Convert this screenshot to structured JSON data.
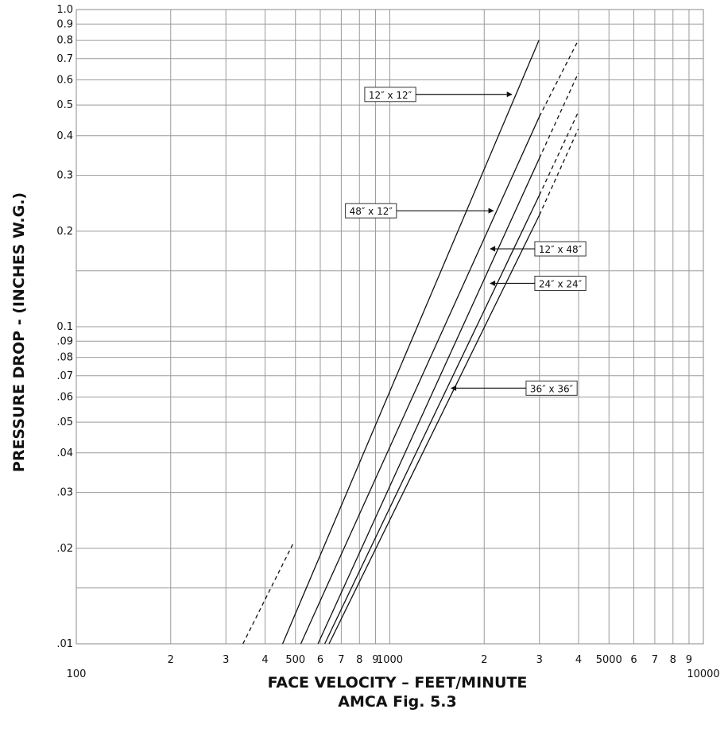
{
  "chart_data": {
    "type": "line",
    "title": "",
    "xlabel": "FACE VELOCITY – FEET/MINUTE",
    "ylabel": "PRESSURE DROP - (INCHES W.G.)",
    "caption": "AMCA Fig. 5.3",
    "x_scale": "log",
    "y_scale": "log",
    "xlim": [
      100,
      10000
    ],
    "ylim": [
      0.01,
      1.0
    ],
    "grid": true,
    "x_ticks": [
      {
        "value": 100,
        "label": "100"
      },
      {
        "value": 200,
        "label": "2"
      },
      {
        "value": 300,
        "label": "3"
      },
      {
        "value": 400,
        "label": "4"
      },
      {
        "value": 500,
        "label": "500"
      },
      {
        "value": 600,
        "label": "6"
      },
      {
        "value": 700,
        "label": "7"
      },
      {
        "value": 800,
        "label": "8"
      },
      {
        "value": 900,
        "label": "9"
      },
      {
        "value": 1000,
        "label": "1000"
      },
      {
        "value": 2000,
        "label": "2"
      },
      {
        "value": 3000,
        "label": "3"
      },
      {
        "value": 4000,
        "label": "4"
      },
      {
        "value": 5000,
        "label": "5000"
      },
      {
        "value": 6000,
        "label": "6"
      },
      {
        "value": 7000,
        "label": "7"
      },
      {
        "value": 8000,
        "label": "8"
      },
      {
        "value": 9000,
        "label": "9"
      },
      {
        "value": 10000,
        "label": "10000"
      }
    ],
    "y_ticks": [
      {
        "value": 1.0,
        "label": "1.0"
      },
      {
        "value": 0.9,
        "label": "0.9"
      },
      {
        "value": 0.8,
        "label": "0.8"
      },
      {
        "value": 0.7,
        "label": "0.7"
      },
      {
        "value": 0.6,
        "label": "0.6"
      },
      {
        "value": 0.5,
        "label": "0.5"
      },
      {
        "value": 0.4,
        "label": "0.4"
      },
      {
        "value": 0.3,
        "label": "0.3"
      },
      {
        "value": 0.2,
        "label": "0.2"
      },
      {
        "value": 0.1,
        "label": "0.1"
      },
      {
        "value": 0.09,
        "label": ".09"
      },
      {
        "value": 0.08,
        "label": ".08"
      },
      {
        "value": 0.07,
        "label": ".07"
      },
      {
        "value": 0.06,
        "label": ".06"
      },
      {
        "value": 0.05,
        "label": ".05"
      },
      {
        "value": 0.04,
        "label": ".04"
      },
      {
        "value": 0.03,
        "label": ".03"
      },
      {
        "value": 0.02,
        "label": ".02"
      },
      {
        "value": 0.01,
        "label": ".01"
      }
    ],
    "y_gridlines": [
      1.0,
      0.9,
      0.8,
      0.7,
      0.6,
      0.5,
      0.4,
      0.3,
      0.2,
      0.15,
      0.1,
      0.09,
      0.08,
      0.07,
      0.06,
      0.05,
      0.04,
      0.03,
      0.02,
      0.015,
      0.01
    ],
    "series": [
      {
        "name": "12″ x 12″",
        "color": "#111111",
        "solid": [
          [
            455,
            0.01
          ],
          [
            2990,
            0.8
          ]
        ],
        "dashed": [
          [
            340,
            0.01
          ],
          [
            495,
            0.021
          ]
        ],
        "label_at": [
          2450,
          0.54
        ]
      },
      {
        "name": "48″ x 12″",
        "color": "#111111",
        "solid": [
          [
            520,
            0.01
          ],
          [
            3000,
            0.46
          ]
        ],
        "dashed": [
          [
            3000,
            0.46
          ],
          [
            3990,
            0.8
          ]
        ],
        "label_at": [
          2140,
          0.232
        ]
      },
      {
        "name": "12″ x 48″",
        "color": "#111111",
        "solid": [
          [
            590,
            0.01
          ],
          [
            3000,
            0.34
          ]
        ],
        "dashed": [
          [
            3000,
            0.34
          ],
          [
            3990,
            0.63
          ]
        ],
        "label_at": [
          2090,
          0.176
        ]
      },
      {
        "name": "24″ x 24″",
        "color": "#111111",
        "solid": [
          [
            620,
            0.01
          ],
          [
            3000,
            0.26
          ]
        ],
        "dashed": [
          [
            3000,
            0.26
          ],
          [
            3990,
            0.475
          ]
        ],
        "label_at": [
          2090,
          0.137
        ]
      },
      {
        "name": "36″ x 36″",
        "color": "#111111",
        "solid": [
          [
            640,
            0.01
          ],
          [
            3000,
            0.225
          ]
        ],
        "dashed": [
          [
            3000,
            0.225
          ],
          [
            3990,
            0.42
          ]
        ],
        "label_at": [
          1570,
          0.064
        ]
      }
    ],
    "label_boxes": [
      {
        "series": 0,
        "text": "12″ x 12″",
        "x": 1210,
        "y": 0.54,
        "side": "left"
      },
      {
        "series": 1,
        "text": "48″ x 12″",
        "x": 1050,
        "y": 0.232,
        "side": "left"
      },
      {
        "series": 2,
        "text": "12″ x 48″",
        "x": 2900,
        "y": 0.176,
        "side": "right"
      },
      {
        "series": 3,
        "text": "24″ x 24″",
        "x": 2900,
        "y": 0.137,
        "side": "right"
      },
      {
        "series": 4,
        "text": "36″ x 36″",
        "x": 2720,
        "y": 0.064,
        "side": "right"
      }
    ]
  }
}
